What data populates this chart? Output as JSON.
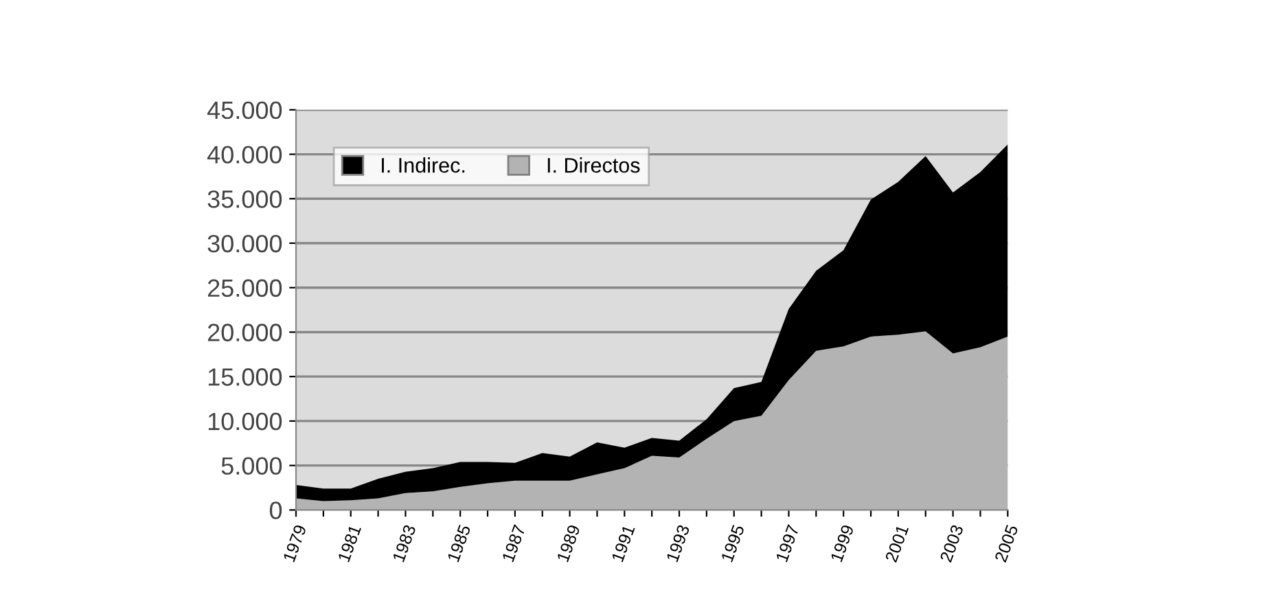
{
  "chart_data": {
    "type": "area",
    "stacked": true,
    "x": [
      1979,
      1980,
      1981,
      1982,
      1983,
      1984,
      1985,
      1986,
      1987,
      1988,
      1989,
      1990,
      1991,
      1992,
      1993,
      1994,
      1995,
      1996,
      1997,
      1998,
      1999,
      2000,
      2001,
      2002,
      2003,
      2004,
      2005
    ],
    "series": [
      {
        "name": "I. Directos",
        "color": "#b3b3b3",
        "values": [
          1300,
          1000,
          1100,
          1300,
          1900,
          2100,
          2600,
          3000,
          3300,
          3300,
          3300,
          4000,
          4700,
          6100,
          5900,
          8000,
          10000,
          10600,
          14600,
          17900,
          18400,
          19500,
          19700,
          20100,
          17600,
          18300,
          19500
        ]
      },
      {
        "name": "I. Indirec.",
        "color": "#000000",
        "values": [
          1500,
          1400,
          1300,
          2200,
          2400,
          2600,
          2800,
          2400,
          2000,
          3100,
          2700,
          3600,
          2300,
          2000,
          1900,
          2200,
          3700,
          3800,
          8000,
          9000,
          10800,
          15400,
          17200,
          19700,
          18100,
          19700,
          21600
        ]
      }
    ],
    "xlim": [
      1979,
      2005
    ],
    "xticks": [
      1979,
      {
        "value": 1980,
        "label": null
      },
      1981,
      {
        "value": 1982,
        "label": null
      },
      1983,
      {
        "value": 1984,
        "label": null
      },
      1985,
      {
        "value": 1986,
        "label": null
      },
      1987,
      {
        "value": 1988,
        "label": null
      },
      1989,
      {
        "value": 1990,
        "label": null
      },
      1991,
      {
        "value": 1992,
        "label": null
      },
      1993,
      {
        "value": 1994,
        "label": null
      },
      1995,
      {
        "value": 1996,
        "label": null
      },
      1997,
      {
        "value": 1998,
        "label": null
      },
      1999,
      {
        "value": 2000,
        "label": null
      },
      2001,
      {
        "value": 2002,
        "label": null
      },
      2003,
      {
        "value": 2004,
        "label": null
      },
      2005
    ],
    "ylim": [
      0,
      45000
    ],
    "yticks": [
      {
        "value": 0,
        "label": "0"
      },
      {
        "value": 5000,
        "label": "5.000"
      },
      {
        "value": 10000,
        "label": "10.000"
      },
      {
        "value": 15000,
        "label": "15.000"
      },
      {
        "value": 20000,
        "label": "20.000"
      },
      {
        "value": 25000,
        "label": "25.000"
      },
      {
        "value": 30000,
        "label": "30.000"
      },
      {
        "value": 35000,
        "label": "35.000"
      },
      {
        "value": 40000,
        "label": "40.000"
      },
      {
        "value": 45000,
        "label": "45.000"
      }
    ],
    "grid": "y",
    "legend": "top left"
  }
}
